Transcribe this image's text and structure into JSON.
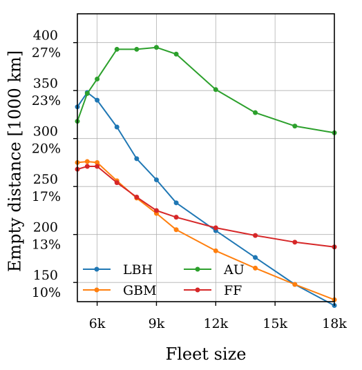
{
  "chart_data": {
    "type": "line",
    "xlabel": "Fleet size",
    "ylabel": "Empty distance [1000 km]",
    "xlim": [
      5000,
      18000
    ],
    "ylim": [
      130,
      430
    ],
    "x_ticks": [
      {
        "value": 6000,
        "label": "6k"
      },
      {
        "value": 9000,
        "label": "9k"
      },
      {
        "value": 12000,
        "label": "12k"
      },
      {
        "value": 15000,
        "label": "15k"
      },
      {
        "value": 18000,
        "label": "18k"
      }
    ],
    "y_ticks": [
      {
        "value": 150,
        "label": "150",
        "pct": "10%"
      },
      {
        "value": 200,
        "label": "200",
        "pct": "13%"
      },
      {
        "value": 250,
        "label": "250",
        "pct": "17%"
      },
      {
        "value": 300,
        "label": "300",
        "pct": "20%"
      },
      {
        "value": 350,
        "label": "350",
        "pct": "23%"
      },
      {
        "value": 400,
        "label": "400",
        "pct": "27%"
      }
    ],
    "grid": true,
    "legend_position": "lower-left",
    "series": [
      {
        "name": "LBH",
        "color": "#1f77b4",
        "x": [
          5000,
          5500,
          6000,
          7000,
          8000,
          9000,
          10000,
          12000,
          14000,
          16000,
          18000
        ],
        "y": [
          333,
          348,
          340,
          312,
          279,
          257,
          233,
          204,
          176,
          148,
          126
        ]
      },
      {
        "name": "GBM",
        "color": "#ff7f0e",
        "x": [
          5000,
          5500,
          6000,
          7000,
          8000,
          9000,
          10000,
          12000,
          14000,
          16000,
          18000
        ],
        "y": [
          275,
          276,
          275,
          256,
          238,
          222,
          205,
          183,
          165,
          148,
          132
        ]
      },
      {
        "name": "AU",
        "color": "#2ca02c",
        "x": [
          5000,
          5500,
          6000,
          7000,
          8000,
          9000,
          10000,
          12000,
          14000,
          16000,
          18000
        ],
        "y": [
          318,
          347,
          362,
          393,
          393,
          395,
          388,
          351,
          327,
          313,
          306
        ]
      },
      {
        "name": "FF",
        "color": "#d62728",
        "x": [
          5000,
          5500,
          6000,
          7000,
          8000,
          9000,
          10000,
          12000,
          14000,
          16000,
          18000
        ],
        "y": [
          268,
          271,
          271,
          254,
          239,
          225,
          218,
          207,
          199,
          192,
          187
        ]
      }
    ]
  }
}
